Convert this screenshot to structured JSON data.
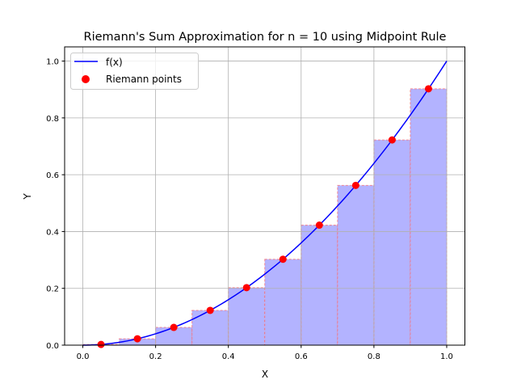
{
  "chart_data": {
    "type": "bar",
    "title": "Riemann's Sum Approximation for n = 10 using Midpoint Rule",
    "xlabel": "X",
    "ylabel": "Y",
    "xlim": [
      -0.05,
      1.05
    ],
    "ylim": [
      0,
      1.05
    ],
    "grid": true,
    "xticks": [
      "0.0",
      "0.2",
      "0.4",
      "0.6",
      "0.8",
      "1.0"
    ],
    "yticks": [
      "0.0",
      "0.2",
      "0.4",
      "0.6",
      "0.8",
      "1.0"
    ],
    "function": "x^2",
    "bar_width": 0.1,
    "bars": {
      "left_edges": [
        0.0,
        0.1,
        0.2,
        0.3,
        0.4,
        0.5,
        0.6,
        0.7,
        0.8,
        0.9
      ],
      "heights": [
        0.0025,
        0.0225,
        0.0625,
        0.1225,
        0.2025,
        0.3025,
        0.4225,
        0.5625,
        0.7225,
        0.9025
      ]
    },
    "points": {
      "x": [
        0.05,
        0.15,
        0.25,
        0.35,
        0.45,
        0.55,
        0.65,
        0.75,
        0.85,
        0.95
      ],
      "y": [
        0.0025,
        0.0225,
        0.0625,
        0.1225,
        0.2025,
        0.3025,
        0.4225,
        0.5625,
        0.7225,
        0.9025
      ]
    },
    "legend": {
      "placement": "top-left",
      "entries": [
        "f(x)",
        "Riemann points"
      ]
    },
    "colors": {
      "line": "#0000ff",
      "points": "#ff0000",
      "bar_fill": "#b3b3ff",
      "bar_edge": "#ff6666",
      "grid": "#b0b0b0"
    }
  }
}
